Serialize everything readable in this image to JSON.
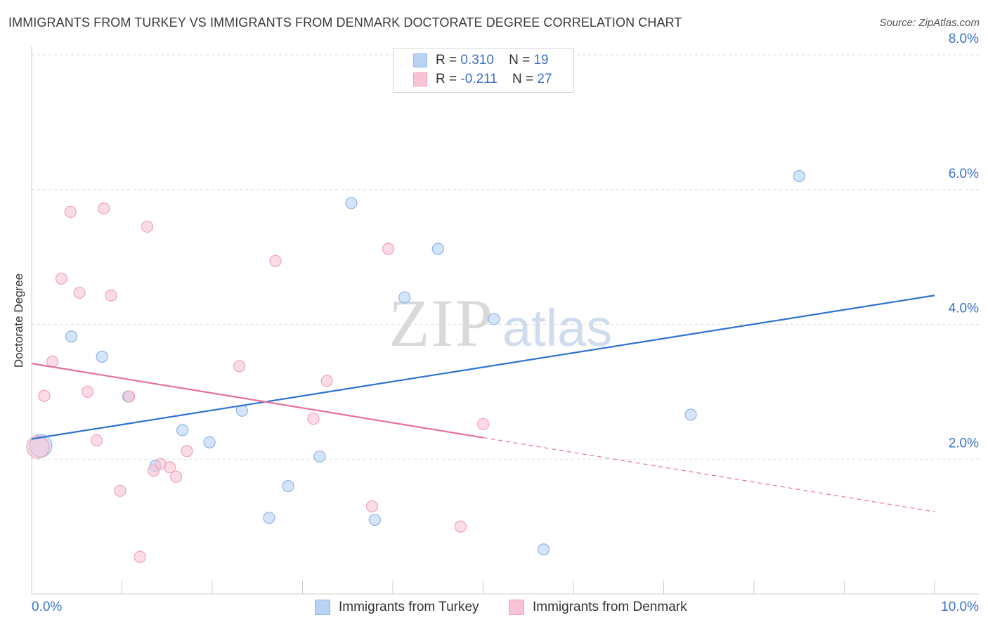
{
  "title": "IMMIGRANTS FROM TURKEY VS IMMIGRANTS FROM DENMARK DOCTORATE DEGREE CORRELATION CHART",
  "source": "Source: ZipAtlas.com",
  "watermark": {
    "zip": "ZIP",
    "atlas": "atlas"
  },
  "legend": {
    "turkey": {
      "r_label": "R =",
      "r_value": "0.310",
      "n_label": "N =",
      "n_value": "19"
    },
    "denmark": {
      "r_label": "R =",
      "r_value": "-0.211",
      "n_label": "N =",
      "n_value": "27"
    }
  },
  "colors": {
    "turkey_fill": "#b9d3f5",
    "turkey_stroke": "#8db4e8",
    "turkey_line": "#2f72d0",
    "denmark_fill": "#f8c3d3",
    "denmark_stroke": "#f0a3bb",
    "denmark_line": "#e8709a",
    "tick_label": "#3b72c9",
    "grid": "#dedede"
  },
  "chart_data": {
    "type": "scatter",
    "title": "IMMIGRANTS FROM TURKEY VS IMMIGRANTS FROM DENMARK DOCTORATE DEGREE CORRELATION CHART",
    "xlabel": "",
    "ylabel": "Doctorate Degree",
    "xlim": [
      0,
      10
    ],
    "ylim": [
      0,
      8
    ],
    "x_tick_labels": [
      "0.0%",
      "10.0%"
    ],
    "y_ticks": [
      2,
      4,
      6,
      8
    ],
    "y_tick_labels": [
      "2.0%",
      "4.0%",
      "6.0%",
      "8.0%"
    ],
    "grid": true,
    "legend_position": "top-center",
    "series": [
      {
        "name": "Immigrants from Turkey",
        "points": [
          {
            "x": 0.1,
            "y": 2.2,
            "big": true
          },
          {
            "x": 0.44,
            "y": 3.82
          },
          {
            "x": 0.78,
            "y": 3.52
          },
          {
            "x": 1.07,
            "y": 2.93
          },
          {
            "x": 1.37,
            "y": 1.9
          },
          {
            "x": 1.67,
            "y": 2.43
          },
          {
            "x": 1.97,
            "y": 2.25
          },
          {
            "x": 2.33,
            "y": 2.72
          },
          {
            "x": 2.63,
            "y": 1.13
          },
          {
            "x": 2.84,
            "y": 1.6
          },
          {
            "x": 3.19,
            "y": 2.04
          },
          {
            "x": 3.54,
            "y": 5.8
          },
          {
            "x": 3.8,
            "y": 1.1
          },
          {
            "x": 4.13,
            "y": 4.4
          },
          {
            "x": 4.5,
            "y": 5.12
          },
          {
            "x": 5.12,
            "y": 4.08
          },
          {
            "x": 5.67,
            "y": 0.66
          },
          {
            "x": 7.3,
            "y": 2.66
          },
          {
            "x": 8.5,
            "y": 6.2
          }
        ],
        "trend": {
          "x": [
            0,
            10
          ],
          "y": [
            2.3,
            4.43
          ]
        }
      },
      {
        "name": "Immigrants from Denmark",
        "points": [
          {
            "x": 0.07,
            "y": 2.18,
            "big": true
          },
          {
            "x": 0.14,
            "y": 2.94
          },
          {
            "x": 0.23,
            "y": 3.45
          },
          {
            "x": 0.33,
            "y": 4.68
          },
          {
            "x": 0.43,
            "y": 5.67
          },
          {
            "x": 0.53,
            "y": 4.47
          },
          {
            "x": 0.62,
            "y": 3.0
          },
          {
            "x": 0.72,
            "y": 2.28
          },
          {
            "x": 0.8,
            "y": 5.72
          },
          {
            "x": 0.88,
            "y": 4.43
          },
          {
            "x": 0.98,
            "y": 1.53
          },
          {
            "x": 1.08,
            "y": 2.93
          },
          {
            "x": 1.2,
            "y": 0.55
          },
          {
            "x": 1.28,
            "y": 5.45
          },
          {
            "x": 1.35,
            "y": 1.83
          },
          {
            "x": 1.43,
            "y": 1.93
          },
          {
            "x": 1.53,
            "y": 1.88
          },
          {
            "x": 1.6,
            "y": 1.74
          },
          {
            "x": 1.72,
            "y": 2.12
          },
          {
            "x": 2.3,
            "y": 3.38
          },
          {
            "x": 2.7,
            "y": 4.94
          },
          {
            "x": 3.12,
            "y": 2.6
          },
          {
            "x": 3.27,
            "y": 3.16
          },
          {
            "x": 3.77,
            "y": 1.3
          },
          {
            "x": 3.95,
            "y": 5.12
          },
          {
            "x": 4.75,
            "y": 1.0
          },
          {
            "x": 5.0,
            "y": 2.52
          }
        ],
        "trend": {
          "x": [
            0,
            5.0
          ],
          "y": [
            3.42,
            2.32
          ]
        },
        "trend_dashed": {
          "x": [
            5.0,
            10
          ],
          "y": [
            2.32,
            1.22
          ]
        }
      }
    ]
  }
}
